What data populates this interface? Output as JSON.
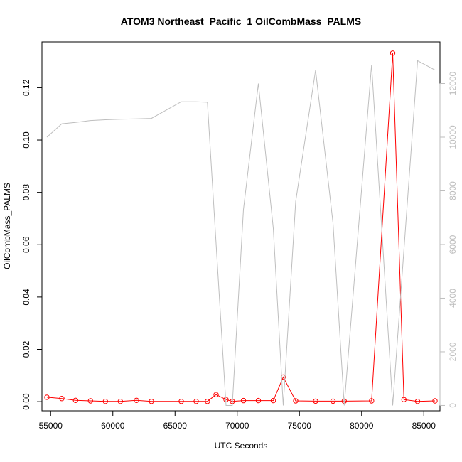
{
  "chart_data": {
    "type": "line",
    "title": "ATOM3 Northeast_Pacific_1 OilCombMass_PALMS",
    "xlabel": "UTC Seconds",
    "ylabel": "OilCombMass_PALMS",
    "xlim": [
      54300,
      86300
    ],
    "ylim": [
      -0.0035,
      0.1375
    ],
    "y2lim": [
      -200,
      13550
    ],
    "x_ticks": [
      55000,
      60000,
      65000,
      70000,
      75000,
      80000,
      85000
    ],
    "y_ticks": [
      0.0,
      0.02,
      0.04,
      0.06,
      0.08,
      0.1,
      0.12
    ],
    "y_tick_labels": [
      "0.00",
      "0.02",
      "0.04",
      "0.06",
      "0.08",
      "0.10",
      "0.12"
    ],
    "y2_ticks": [
      0,
      2000,
      4000,
      6000,
      8000,
      10000,
      12000
    ],
    "grid": false,
    "series": [
      {
        "axis": "left",
        "color": "#ff0000",
        "marker": "open-circle",
        "x": [
          54700,
          55900,
          57000,
          58200,
          59400,
          60600,
          61900,
          63100,
          65500,
          66700,
          67600,
          68300,
          69100,
          69600,
          70500,
          71700,
          72900,
          73700,
          74700,
          76300,
          77700,
          78600,
          80800,
          82500,
          83400,
          84500,
          85900
        ],
        "y": [
          0.0017,
          0.0012,
          0.0005,
          0.0003,
          0.0001,
          0.0001,
          0.0005,
          0.0001,
          0.0001,
          0.0001,
          0.0001,
          0.0027,
          0.0008,
          0.0001,
          0.0004,
          0.0004,
          0.0004,
          0.0094,
          0.0003,
          0.0002,
          0.0002,
          0.0002,
          0.0003,
          0.1332,
          0.0008,
          0.0001,
          0.0003
        ]
      },
      {
        "axis": "right",
        "color": "#bebebe",
        "marker": "none",
        "x": [
          54700,
          55900,
          57000,
          58200,
          59400,
          60600,
          61900,
          63100,
          65500,
          66700,
          67600,
          69100,
          69600,
          70500,
          71700,
          72900,
          73700,
          74700,
          76300,
          77700,
          78600,
          80800,
          82500,
          84500,
          85900
        ],
        "y": [
          10000,
          10500,
          10550,
          10620,
          10650,
          10670,
          10680,
          10700,
          11320,
          11320,
          11300,
          0,
          0,
          7300,
          12000,
          6600,
          0,
          7600,
          12500,
          6800,
          0,
          12700,
          0,
          12850,
          12500
        ]
      }
    ]
  }
}
